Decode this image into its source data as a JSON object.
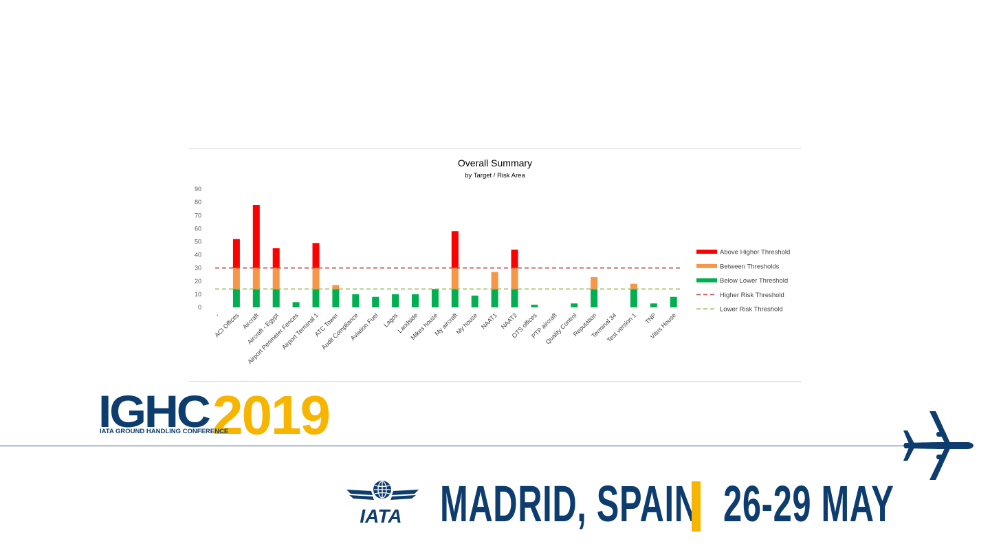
{
  "chart_data": {
    "type": "bar",
    "stacked": true,
    "title": "Overall Summary",
    "subtitle": "by Target / Risk Area",
    "categories": [
      "-",
      "ACI Offices",
      "Aircraft",
      "Aircraft - Egypt",
      "Airport Perimeter Fences",
      "Airport Terminal 1",
      "ATC Tower",
      "Audit Compliance",
      "Aviation Fuel",
      "Lagos",
      "Landside",
      "Mikes house",
      "My aircraft",
      "My house",
      "NAAT1",
      "NAAT2",
      "OTS offices",
      "PTP aircraft",
      "Quality Control",
      "Reputation",
      "Terminal 34",
      "Test version 1",
      "TNP",
      "Vitus House"
    ],
    "series": [
      {
        "name": "Below Lower Threshold",
        "color": "#00b050",
        "values": [
          0,
          14,
          14,
          14,
          4,
          14,
          14,
          10,
          8,
          10,
          10,
          14,
          14,
          9,
          14,
          14,
          2,
          0,
          3,
          14,
          0,
          14,
          3,
          8
        ]
      },
      {
        "name": "Between Thresholds",
        "color": "#f79646",
        "values": [
          0,
          16,
          16,
          16,
          0,
          16,
          3,
          0,
          0,
          0,
          0,
          0,
          16,
          0,
          13,
          16,
          0,
          0,
          0,
          9,
          0,
          4,
          0,
          0
        ]
      },
      {
        "name": "Above Higher Threshold",
        "color": "#ff0000",
        "values": [
          0,
          22,
          48,
          15,
          0,
          19,
          0,
          0,
          0,
          0,
          0,
          0,
          28,
          0,
          0,
          14,
          0,
          0,
          0,
          0,
          0,
          0,
          0,
          0
        ]
      }
    ],
    "thresholds": [
      {
        "name": "Higher Risk Threshold",
        "value": 30,
        "color": "#c0504d",
        "style": "dashed"
      },
      {
        "name": "Lower Risk Threshold",
        "value": 14,
        "color": "#9bbb59",
        "style": "dashed"
      }
    ],
    "ylim": [
      0,
      90
    ],
    "yticks": [
      0,
      10,
      20,
      30,
      40,
      50,
      60,
      70,
      80,
      90
    ],
    "grid": false,
    "legend_position": "right"
  },
  "branding": {
    "event_short": "IGHC",
    "event_year": "2019",
    "event_full": "IATA GROUND HANDLING CONFERENCE",
    "org": "IATA",
    "location": "MADRID, SPAIN",
    "dates": "26-29 MAY",
    "navy": "#0d3d6e",
    "gold": "#f7b500"
  }
}
